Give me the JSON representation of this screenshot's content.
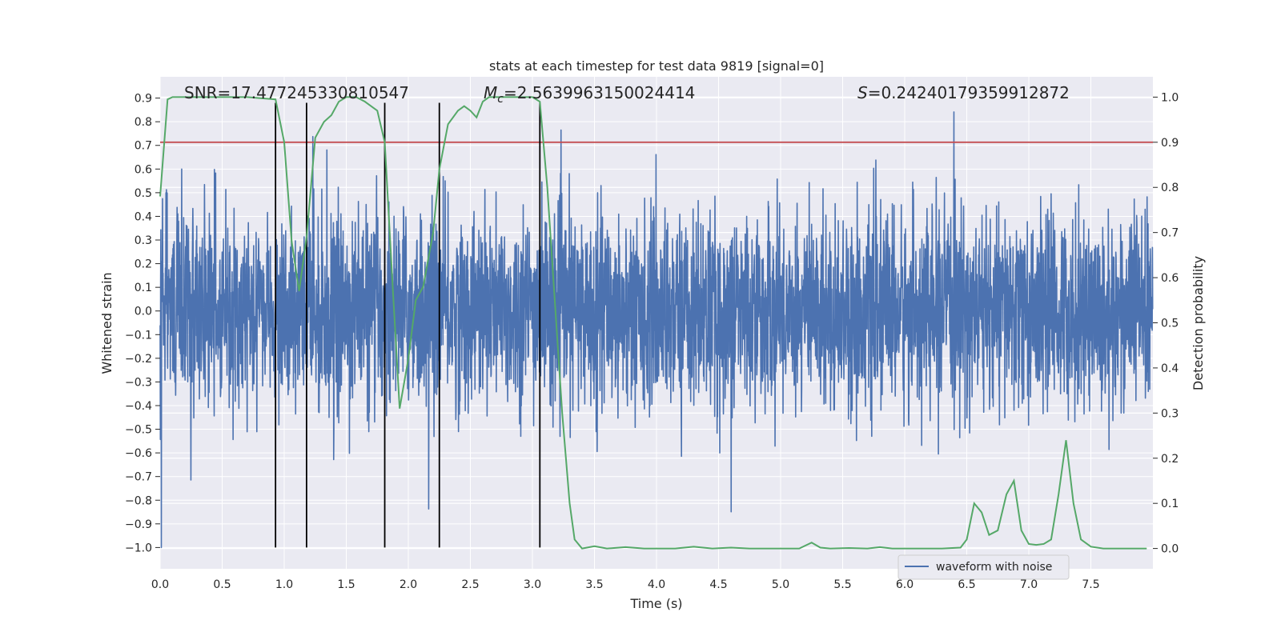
{
  "chart_data": {
    "type": "line",
    "title": "stats at each timestep for test data 9819 [signal=0]",
    "xlabel": "Time (s)",
    "ylabel_left": "Whitened strain",
    "ylabel_right": "Detection probability",
    "xlim": [
      0.0,
      8.0
    ],
    "ylim_left": [
      -1.09,
      0.99
    ],
    "ylim_right": [
      -0.045,
      1.045
    ],
    "x_ticks": [
      "0.0",
      "0.5",
      "1.0",
      "1.5",
      "2.0",
      "2.5",
      "3.0",
      "3.5",
      "4.0",
      "4.5",
      "5.0",
      "5.5",
      "6.0",
      "6.5",
      "7.0",
      "7.5"
    ],
    "y_left_ticks": [
      "0.9",
      "0.8",
      "0.7",
      "0.6",
      "0.5",
      "0.4",
      "0.3",
      "0.2",
      "0.1",
      "0.0",
      "-0.1",
      "-0.2",
      "-0.3",
      "-0.4",
      "-0.5",
      "-0.6",
      "-0.7",
      "-0.8",
      "-0.9",
      "-1.0"
    ],
    "y_right_ticks": [
      "1.0",
      "0.9",
      "0.8",
      "0.7",
      "0.6",
      "0.5",
      "0.4",
      "0.3",
      "0.2",
      "0.1",
      "0.0"
    ],
    "annotations": {
      "snr": "SNR=17.477245330810547",
      "mc_prefix": "M",
      "mc_sub": "c",
      "mc_value": "=2.5639963150024414",
      "s_prefix": "S",
      "s_value": "=0.24240179359912872"
    },
    "threshold": {
      "name": "detection threshold",
      "value": 0.9,
      "axis": "right",
      "color": "#c44e52"
    },
    "detection_markers_x": [
      0.93,
      1.18,
      1.81,
      2.25,
      3.06
    ],
    "detection_markers_range": [
      -1.0,
      0.88
    ],
    "waveform": {
      "name": "waveform with noise",
      "color": "#4c72b0",
      "samples_per_second": 512,
      "description": "whitened strain noise, amplitude mostly within -0.5..0.6 with spikes"
    },
    "probability": {
      "name": "Detection probability",
      "color": "#55a868",
      "x": [
        0.0,
        0.06,
        0.1,
        0.2,
        0.3,
        0.5,
        0.7,
        0.93,
        1.0,
        1.06,
        1.12,
        1.18,
        1.25,
        1.32,
        1.38,
        1.44,
        1.5,
        1.58,
        1.65,
        1.75,
        1.81,
        1.87,
        1.93,
        2.0,
        2.06,
        2.12,
        2.2,
        2.25,
        2.32,
        2.4,
        2.45,
        2.5,
        2.55,
        2.6,
        2.65,
        2.7,
        2.8,
        2.9,
        3.0,
        3.06,
        3.12,
        3.18,
        3.24,
        3.3,
        3.34,
        3.4,
        3.5,
        3.6,
        3.75,
        3.9,
        4.0,
        4.15,
        4.3,
        4.45,
        4.6,
        4.75,
        4.9,
        5.0,
        5.15,
        5.25,
        5.32,
        5.4,
        5.55,
        5.7,
        5.8,
        5.9,
        6.0,
        6.15,
        6.3,
        6.45,
        6.5,
        6.56,
        6.62,
        6.68,
        6.75,
        6.82,
        6.88,
        6.94,
        7.0,
        7.06,
        7.12,
        7.18,
        7.24,
        7.3,
        7.36,
        7.42,
        7.5,
        7.6,
        7.75,
        7.95
      ],
      "y": [
        0.78,
        0.995,
        1.0,
        1.0,
        1.0,
        1.0,
        1.0,
        0.995,
        0.9,
        0.68,
        0.57,
        0.69,
        0.91,
        0.945,
        0.96,
        0.99,
        1.0,
        1.0,
        0.99,
        0.97,
        0.9,
        0.6,
        0.31,
        0.42,
        0.55,
        0.58,
        0.7,
        0.84,
        0.94,
        0.97,
        0.98,
        0.97,
        0.955,
        0.99,
        1.0,
        1.0,
        1.0,
        1.0,
        1.0,
        0.99,
        0.8,
        0.55,
        0.3,
        0.1,
        0.02,
        0.0,
        0.005,
        0.0,
        0.003,
        0.0,
        0.0,
        0.0,
        0.004,
        0.0,
        0.002,
        0.0,
        0.0,
        0.0,
        0.0,
        0.013,
        0.002,
        0.0,
        0.001,
        0.0,
        0.003,
        0.0,
        0.0,
        0.0,
        0.0,
        0.002,
        0.02,
        0.1,
        0.08,
        0.03,
        0.04,
        0.12,
        0.15,
        0.04,
        0.01,
        0.008,
        0.01,
        0.02,
        0.12,
        0.24,
        0.1,
        0.02,
        0.004,
        0.0,
        0.0,
        0.0
      ]
    },
    "legend": {
      "entries": [
        "waveform with noise"
      ],
      "placement": "lower-right"
    }
  }
}
